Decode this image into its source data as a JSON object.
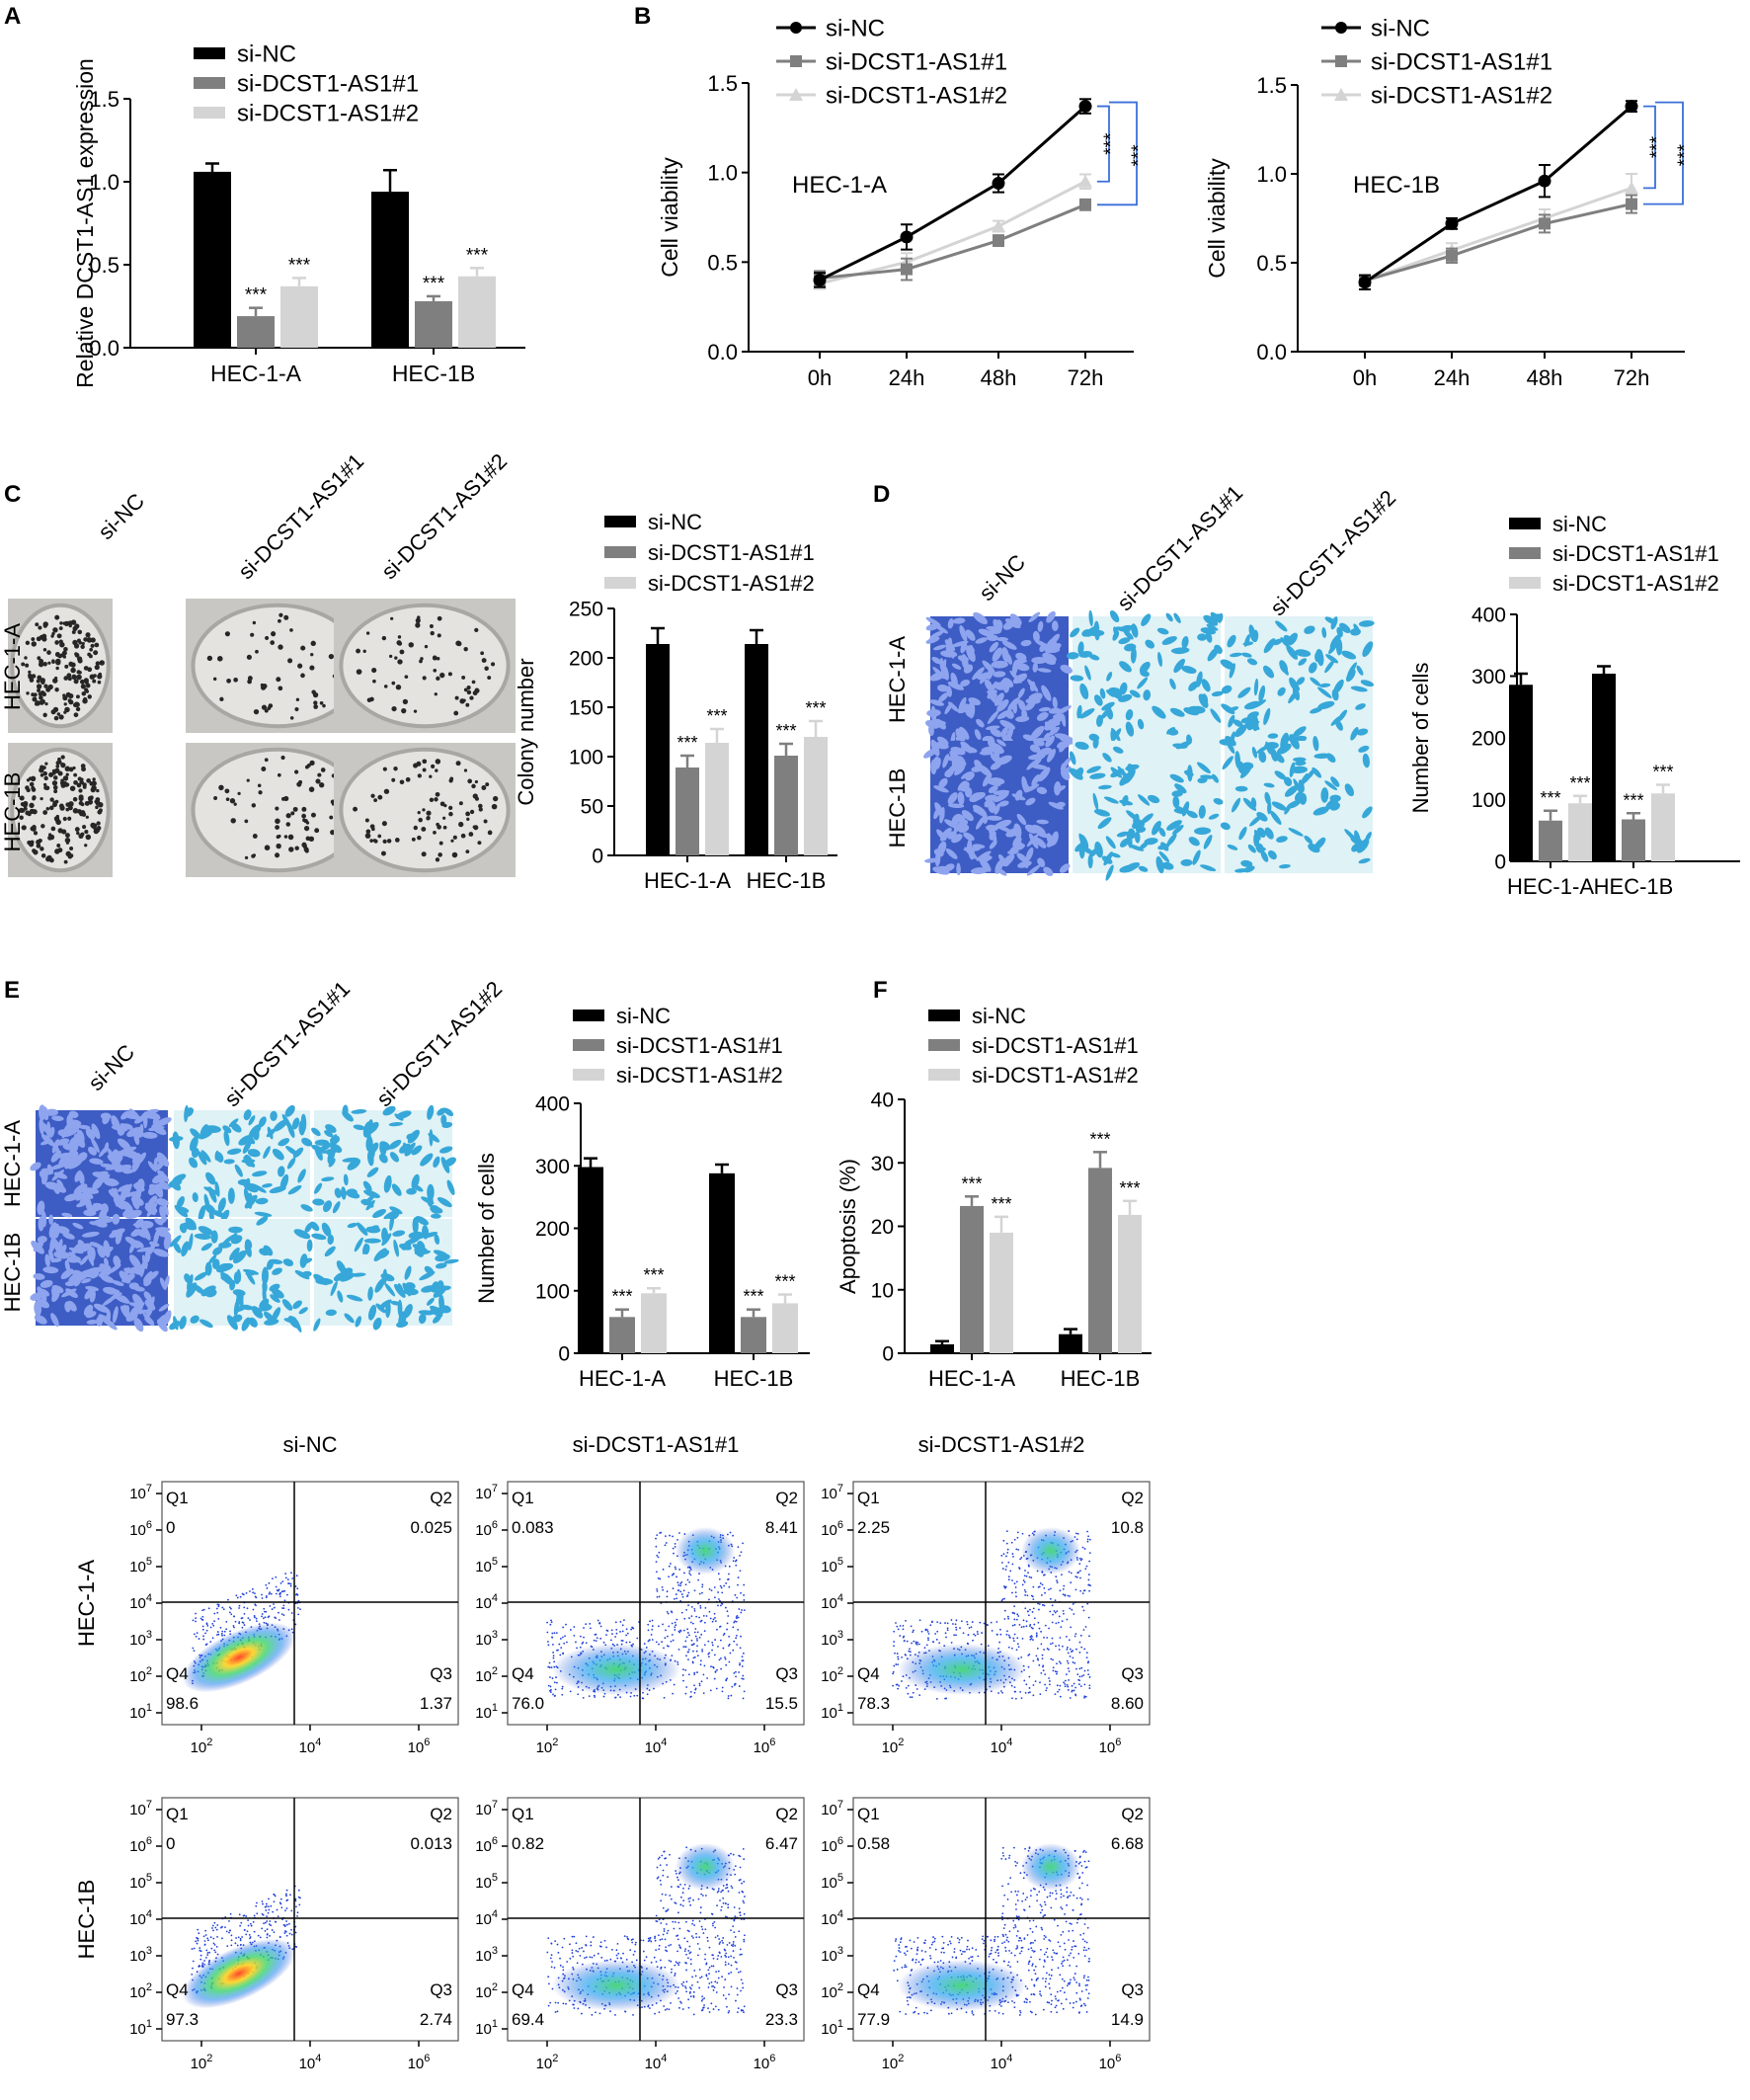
{
  "figure": {
    "panel_letters": [
      "A",
      "B",
      "C",
      "D",
      "E",
      "F"
    ],
    "legend_labels": [
      "si-NC",
      "si-DCST1-AS1#1",
      "si-DCST1-AS1#2"
    ],
    "cell_lines": [
      "HEC-1-A",
      "HEC-1B"
    ],
    "significance": "***",
    "colors": {
      "si-NC": "#000000",
      "si-DCST1-AS1#1": "#7f7f7f",
      "si-DCST1-AS1#2": "#d4d4d4",
      "bracket": "#3a6fd8"
    }
  },
  "chart_data": [
    {
      "panel": "A",
      "type": "bar",
      "ylabel": "Relative DCST1-AS1 expression",
      "ylim": [
        0,
        1.5
      ],
      "yticks": [
        "0.0",
        "0.5",
        "1.0",
        "1.5"
      ],
      "categories": [
        "HEC-1-A",
        "HEC-1B"
      ],
      "series": [
        {
          "name": "si-NC",
          "values": [
            1.06,
            0.94
          ],
          "errors": [
            0.05,
            0.13
          ]
        },
        {
          "name": "si-DCST1-AS1#1",
          "values": [
            0.19,
            0.28
          ],
          "errors": [
            0.05,
            0.03
          ]
        },
        {
          "name": "si-DCST1-AS1#2",
          "values": [
            0.37,
            0.43
          ],
          "errors": [
            0.05,
            0.05
          ]
        }
      ],
      "annotations": [
        "",
        "***",
        "***"
      ]
    },
    {
      "panel": "B",
      "type": "line",
      "ylabel": "Cell viability",
      "label": "HEC-1-A",
      "ylim": [
        0,
        1.5
      ],
      "yticks": [
        "0.0",
        "0.5",
        "1.0",
        "1.5"
      ],
      "x": [
        "0h",
        "24h",
        "48h",
        "72h"
      ],
      "series": [
        {
          "name": "si-NC",
          "values": [
            0.4,
            0.64,
            0.94,
            1.37
          ],
          "errors": [
            0.04,
            0.07,
            0.05,
            0.04
          ]
        },
        {
          "name": "si-DCST1-AS1#1",
          "values": [
            0.41,
            0.46,
            0.62,
            0.82
          ],
          "errors": [
            0.04,
            0.06,
            0.03,
            0.03
          ]
        },
        {
          "name": "si-DCST1-AS1#2",
          "values": [
            0.38,
            0.5,
            0.7,
            0.95
          ],
          "errors": [
            0.03,
            0.05,
            0.03,
            0.04
          ]
        }
      ]
    },
    {
      "panel": "B2",
      "type": "line",
      "ylabel": "Cell viability",
      "label": "HEC-1B",
      "ylim": [
        0,
        1.5
      ],
      "yticks": [
        "0.0",
        "0.5",
        "1.0",
        "1.5"
      ],
      "x": [
        "0h",
        "24h",
        "48h",
        "72h"
      ],
      "series": [
        {
          "name": "si-NC",
          "values": [
            0.39,
            0.72,
            0.96,
            1.38
          ],
          "errors": [
            0.04,
            0.03,
            0.09,
            0.03
          ]
        },
        {
          "name": "si-DCST1-AS1#1",
          "values": [
            0.4,
            0.54,
            0.72,
            0.83
          ],
          "errors": [
            0.03,
            0.04,
            0.05,
            0.05
          ]
        },
        {
          "name": "si-DCST1-AS1#2",
          "values": [
            0.4,
            0.57,
            0.75,
            0.92
          ],
          "errors": [
            0.03,
            0.04,
            0.05,
            0.08
          ]
        }
      ]
    },
    {
      "panel": "C",
      "type": "bar",
      "ylabel": "Colony number",
      "ylim": [
        0,
        250
      ],
      "yticks": [
        "0",
        "50",
        "100",
        "150",
        "200",
        "250"
      ],
      "categories": [
        "HEC-1-A",
        "HEC-1B"
      ],
      "series": [
        {
          "name": "si-NC",
          "values": [
            214,
            214
          ],
          "errors": [
            16,
            14
          ]
        },
        {
          "name": "si-DCST1-AS1#1",
          "values": [
            89,
            101
          ],
          "errors": [
            12,
            12
          ]
        },
        {
          "name": "si-DCST1-AS1#2",
          "values": [
            114,
            120
          ],
          "errors": [
            14,
            16
          ]
        }
      ],
      "annotations": [
        "",
        "***",
        "***"
      ]
    },
    {
      "panel": "D",
      "type": "bar",
      "ylabel": "Number of cells",
      "ylim": [
        0,
        400
      ],
      "yticks": [
        "0",
        "100",
        "200",
        "300",
        "400"
      ],
      "categories": [
        "HEC-1-A",
        "HEC-1B"
      ],
      "series": [
        {
          "name": "si-NC",
          "values": [
            286,
            304
          ],
          "errors": [
            18,
            12
          ]
        },
        {
          "name": "si-DCST1-AS1#1",
          "values": [
            66,
            68
          ],
          "errors": [
            16,
            10
          ]
        },
        {
          "name": "si-DCST1-AS1#2",
          "values": [
            94,
            110
          ],
          "errors": [
            12,
            14
          ]
        }
      ],
      "annotations": [
        "",
        "***",
        "***"
      ]
    },
    {
      "panel": "E",
      "type": "bar",
      "ylabel": "Number of cells",
      "ylim": [
        0,
        400
      ],
      "yticks": [
        "0",
        "100",
        "200",
        "300",
        "400"
      ],
      "categories": [
        "HEC-1-A",
        "HEC-1B"
      ],
      "series": [
        {
          "name": "si-NC",
          "values": [
            298,
            288
          ],
          "errors": [
            14,
            14
          ]
        },
        {
          "name": "si-DCST1-AS1#1",
          "values": [
            58,
            58
          ],
          "errors": [
            12,
            12
          ]
        },
        {
          "name": "si-DCST1-AS1#2",
          "values": [
            96,
            80
          ],
          "errors": [
            8,
            14
          ]
        }
      ],
      "annotations": [
        "",
        "***",
        "***"
      ]
    },
    {
      "panel": "F",
      "type": "bar",
      "ylabel": "Apoptosis (%)",
      "ylim": [
        0,
        40
      ],
      "yticks": [
        "0",
        "10",
        "20",
        "30",
        "40"
      ],
      "categories": [
        "HEC-1-A",
        "HEC-1B"
      ],
      "series": [
        {
          "name": "si-NC",
          "values": [
            1.4,
            3.0
          ],
          "errors": [
            0.5,
            0.8
          ]
        },
        {
          "name": "si-DCST1-AS1#1",
          "values": [
            23.2,
            29.2
          ],
          "errors": [
            1.5,
            2.5
          ]
        },
        {
          "name": "si-DCST1-AS1#2",
          "values": [
            19.0,
            21.8
          ],
          "errors": [
            2.5,
            2.2
          ]
        }
      ],
      "annotations": [
        "",
        "***",
        "***"
      ]
    }
  ],
  "flow": {
    "columns": [
      "si-NC",
      "si-DCST1-AS1#1",
      "si-DCST1-AS1#2"
    ],
    "rows": [
      "HEC-1-A",
      "HEC-1B"
    ],
    "yticks": [
      [
        "10",
        "1"
      ],
      [
        "10",
        "2"
      ],
      [
        "10",
        "3"
      ],
      [
        "10",
        "4"
      ],
      [
        "10",
        "5"
      ],
      [
        "10",
        "6"
      ],
      [
        "10",
        "7"
      ]
    ],
    "xticks": [
      [
        "10",
        "2"
      ],
      [
        "10",
        "4"
      ],
      [
        "10",
        "6"
      ]
    ],
    "quadrant_names": [
      "Q1",
      "Q2",
      "Q3",
      "Q4"
    ],
    "plots": [
      [
        {
          "q1": "0",
          "q2": "0.025",
          "q3": "1.37",
          "q4": "98.6"
        },
        {
          "q1": "0.083",
          "q2": "8.41",
          "q3": "15.5",
          "q4": "76.0"
        },
        {
          "q1": "2.25",
          "q2": "10.8",
          "q3": "8.60",
          "q4": "78.3"
        }
      ],
      [
        {
          "q1": "0",
          "q2": "0.013",
          "q3": "2.74",
          "q4": "97.3"
        },
        {
          "q1": "0.82",
          "q2": "6.47",
          "q3": "23.3",
          "q4": "69.4"
        },
        {
          "q1": "0.58",
          "q2": "6.68",
          "q3": "14.9",
          "q4": "77.9"
        }
      ]
    ]
  }
}
